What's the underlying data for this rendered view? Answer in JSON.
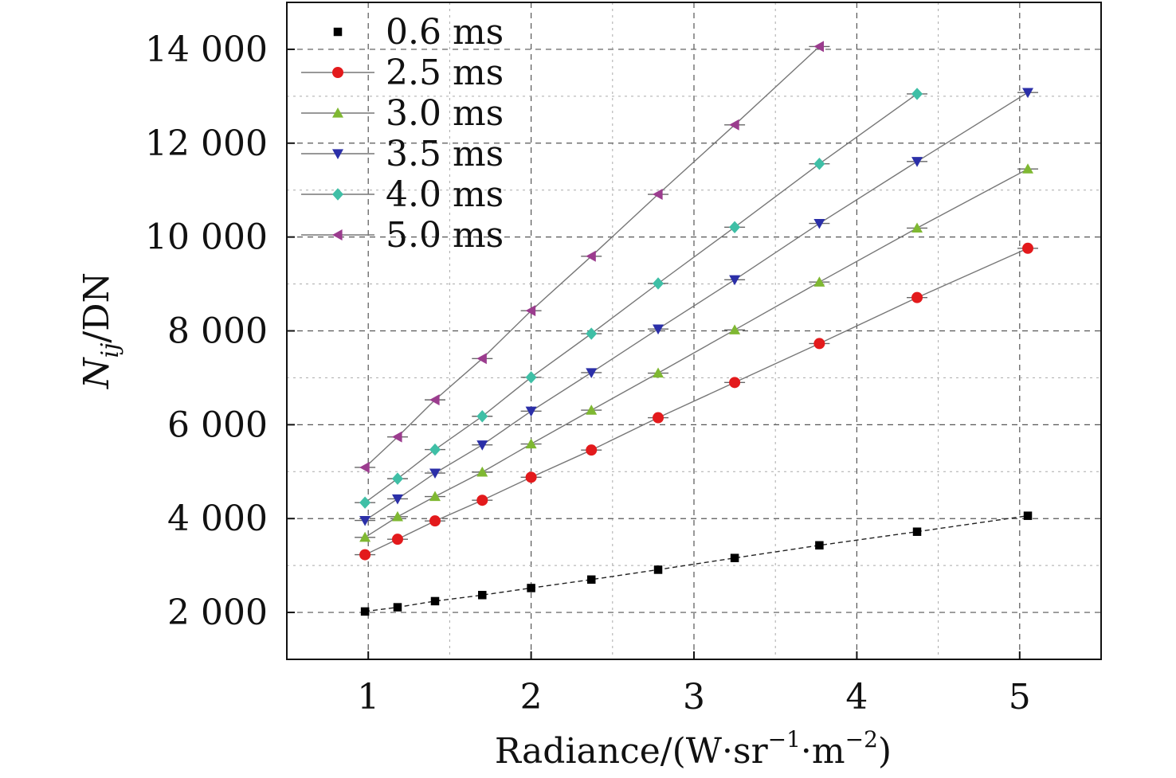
{
  "chart_data": {
    "type": "line",
    "xlabel": {
      "main": "Radiance/(W·sr",
      "sup1": "−1",
      "mid": "·m",
      "sup2": "−2",
      "end": ")"
    },
    "ylabel": {
      "italic": "N",
      "sub": "ij",
      "rest": "/DN"
    },
    "xlim": [
      0.5,
      5.5
    ],
    "ylim": [
      1000,
      15000
    ],
    "x_ticks": [
      1,
      2,
      3,
      4,
      5
    ],
    "x_tick_labels": [
      "1",
      "2",
      "3",
      "4",
      "5"
    ],
    "y_ticks": [
      2000,
      4000,
      6000,
      8000,
      10000,
      12000,
      14000
    ],
    "y_tick_labels": [
      "2 000",
      "4 000",
      "6 000",
      "8 000",
      "10 000",
      "12 000",
      "14 000"
    ],
    "grid": true,
    "legend_position": "top-left",
    "series": [
      {
        "name": "0.6 ms",
        "marker": "square",
        "color": "#000000",
        "line": "dashed",
        "x": [
          0.98,
          1.18,
          1.41,
          1.7,
          2.0,
          2.37,
          2.78,
          3.25,
          3.77,
          4.37,
          5.05
        ],
        "y": [
          2020,
          2110,
          2240,
          2370,
          2520,
          2700,
          2910,
          3160,
          3430,
          3720,
          4060
        ]
      },
      {
        "name": "2.5 ms",
        "marker": "circle",
        "color": "#e31a1c",
        "line": "solid",
        "x": [
          0.98,
          1.18,
          1.41,
          1.7,
          2.0,
          2.37,
          2.78,
          3.25,
          3.77,
          4.37,
          5.05
        ],
        "y": [
          3230,
          3560,
          3950,
          4390,
          4880,
          5460,
          6150,
          6900,
          7730,
          8710,
          9760
        ]
      },
      {
        "name": "3.0 ms",
        "marker": "triangle-up",
        "color": "#7fb832",
        "line": "solid",
        "x": [
          0.98,
          1.18,
          1.41,
          1.7,
          2.0,
          2.37,
          2.78,
          3.25,
          3.77,
          4.37,
          5.05
        ],
        "y": [
          3600,
          4040,
          4470,
          4990,
          5590,
          6310,
          7100,
          8020,
          9040,
          10190,
          11450
        ]
      },
      {
        "name": "3.5 ms",
        "marker": "triangle-down",
        "color": "#2b2fa8",
        "line": "solid",
        "x": [
          0.98,
          1.18,
          1.41,
          1.7,
          2.0,
          2.37,
          2.78,
          3.25,
          3.77,
          4.37,
          5.05
        ],
        "y": [
          3960,
          4420,
          4970,
          5570,
          6290,
          7110,
          8040,
          9090,
          10290,
          11610,
          13080
        ]
      },
      {
        "name": "4.0 ms",
        "marker": "diamond",
        "color": "#3fbfa6",
        "line": "solid",
        "x": [
          0.98,
          1.18,
          1.41,
          1.7,
          2.0,
          2.37,
          2.78,
          3.25,
          3.77,
          4.37
        ],
        "y": [
          4340,
          4850,
          5470,
          6180,
          7010,
          7940,
          9010,
          10210,
          11560,
          13050
        ]
      },
      {
        "name": "5.0 ms",
        "marker": "triangle-left",
        "color": "#9b3c8e",
        "line": "solid",
        "x": [
          0.98,
          1.18,
          1.41,
          1.7,
          2.0,
          2.37,
          2.78,
          3.25,
          3.77
        ],
        "y": [
          5090,
          5740,
          6530,
          7410,
          8430,
          9590,
          10910,
          12390,
          14060
        ]
      }
    ]
  }
}
